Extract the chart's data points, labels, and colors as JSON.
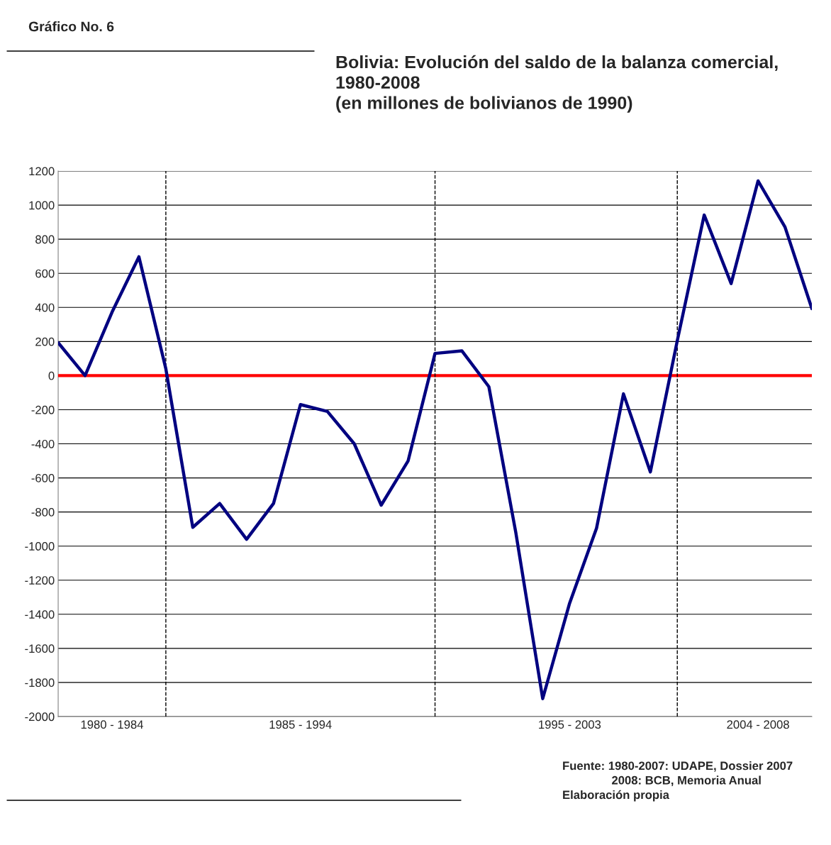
{
  "chart_data": {
    "type": "line",
    "title": "Bolivia: Evolución del saldo de la balanza comercial,\n1980-2008\n(en millones de bolivianos de 1990)",
    "annotations": [
      "Gráfico No. 6",
      "Fuente: 1980-2007: UDAPE, Dossier 2007\n               2008: BCB, Memoria Anual\nElaboración propia"
    ],
    "categories": [
      null,
      null,
      "1980 - 1984",
      null,
      null,
      null,
      null,
      null,
      null,
      "1985 - 1994",
      null,
      null,
      null,
      null,
      null,
      null,
      null,
      null,
      null,
      "1995 - 2003",
      null,
      null,
      null,
      null,
      null,
      null,
      "2004 - 2008",
      null,
      null
    ],
    "series": [
      {
        "color": "#000080",
        "values": [
          193,
          0,
          372,
          697,
          40,
          -890,
          -750,
          -960,
          -750,
          -170,
          -210,
          -400,
          -760,
          -500,
          130,
          145,
          -65,
          -920,
          -1895,
          -1335,
          -895,
          -107,
          -565,
          205,
          942,
          540,
          1142,
          872,
          393
        ]
      }
    ],
    "ylim": [
      -2000,
      1200
    ],
    "yticks": [
      -2000,
      -1800,
      -1600,
      -1400,
      -1200,
      -1000,
      -800,
      -600,
      -400,
      -200,
      0,
      200,
      400,
      600,
      800,
      1000,
      1200
    ],
    "grid": true,
    "line_style": "solid",
    "ref_lines": [
      {
        "axis": "y",
        "value": 0,
        "color": "#ff0000",
        "line_style": "solid"
      }
    ]
  }
}
